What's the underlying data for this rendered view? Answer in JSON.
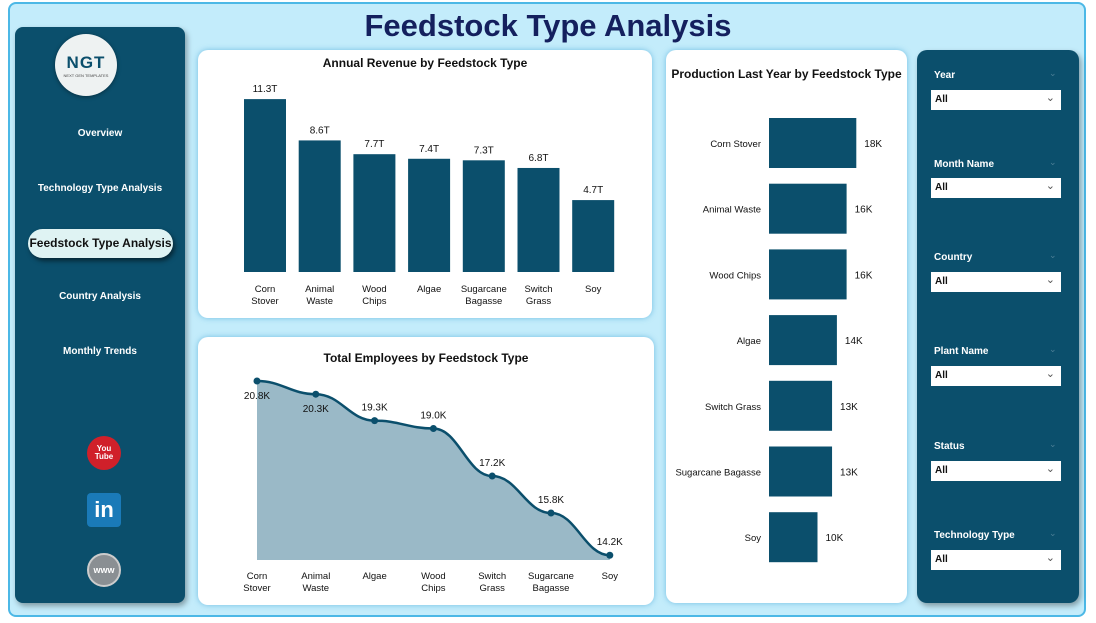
{
  "title": "Feedstock Type Analysis",
  "logo": {
    "text": "NGT",
    "subtext": "NEXT GEN TEMPLATES"
  },
  "nav": [
    {
      "label": "Overview"
    },
    {
      "label": "Technology Type Analysis"
    },
    {
      "label": "Feedstock Type Analysis",
      "active": true
    },
    {
      "label": "Country Analysis"
    },
    {
      "label": "Monthly Trends"
    }
  ],
  "social": {
    "youtube": "You Tube",
    "linkedin": "in",
    "web": "www"
  },
  "colors": {
    "bar": "#0b4f6c",
    "area": "#9ab9c7",
    "panel": "#0b4f6c",
    "background": "#c3ecfb"
  },
  "filters": [
    {
      "label": "Year",
      "value": "All"
    },
    {
      "label": "Month Name",
      "value": "All"
    },
    {
      "label": "Country",
      "value": "All"
    },
    {
      "label": "Plant Name",
      "value": "All"
    },
    {
      "label": "Status",
      "value": "All"
    },
    {
      "label": "Technology Type",
      "value": "All"
    }
  ],
  "chart_data": [
    {
      "type": "bar",
      "title": "Annual Revenue by Feedstock Type",
      "categories": [
        "Corn Stover",
        "Animal Waste",
        "Wood Chips",
        "Algae",
        "Sugarcane Bagasse",
        "Switch Grass",
        "Soy"
      ],
      "values": [
        11.3,
        8.6,
        7.7,
        7.4,
        7.3,
        6.8,
        4.7
      ],
      "labels": [
        "11.3T",
        "8.6T",
        "7.7T",
        "7.4T",
        "7.3T",
        "6.8T",
        "4.7T"
      ]
    },
    {
      "type": "area",
      "title": "Total Employees by Feedstock Type",
      "categories": [
        "Corn Stover",
        "Animal Waste",
        "Algae",
        "Wood Chips",
        "Switch Grass",
        "Sugarcane Bagasse",
        "Soy"
      ],
      "values": [
        20.8,
        20.3,
        19.3,
        19.0,
        17.2,
        15.8,
        14.2
      ],
      "labels": [
        "20.8K",
        "20.3K",
        "19.3K",
        "19.0K",
        "17.2K",
        "15.8K",
        "14.2K"
      ]
    },
    {
      "type": "bar",
      "orientation": "horizontal",
      "title": "Production Last Year by Feedstock Type",
      "categories": [
        "Corn Stover",
        "Animal Waste",
        "Wood Chips",
        "Algae",
        "Switch Grass",
        "Sugarcane Bagasse",
        "Soy"
      ],
      "values": [
        18,
        16,
        16,
        14,
        13,
        13,
        10
      ],
      "labels": [
        "18K",
        "16K",
        "16K",
        "14K",
        "13K",
        "13K",
        "10K"
      ]
    }
  ]
}
